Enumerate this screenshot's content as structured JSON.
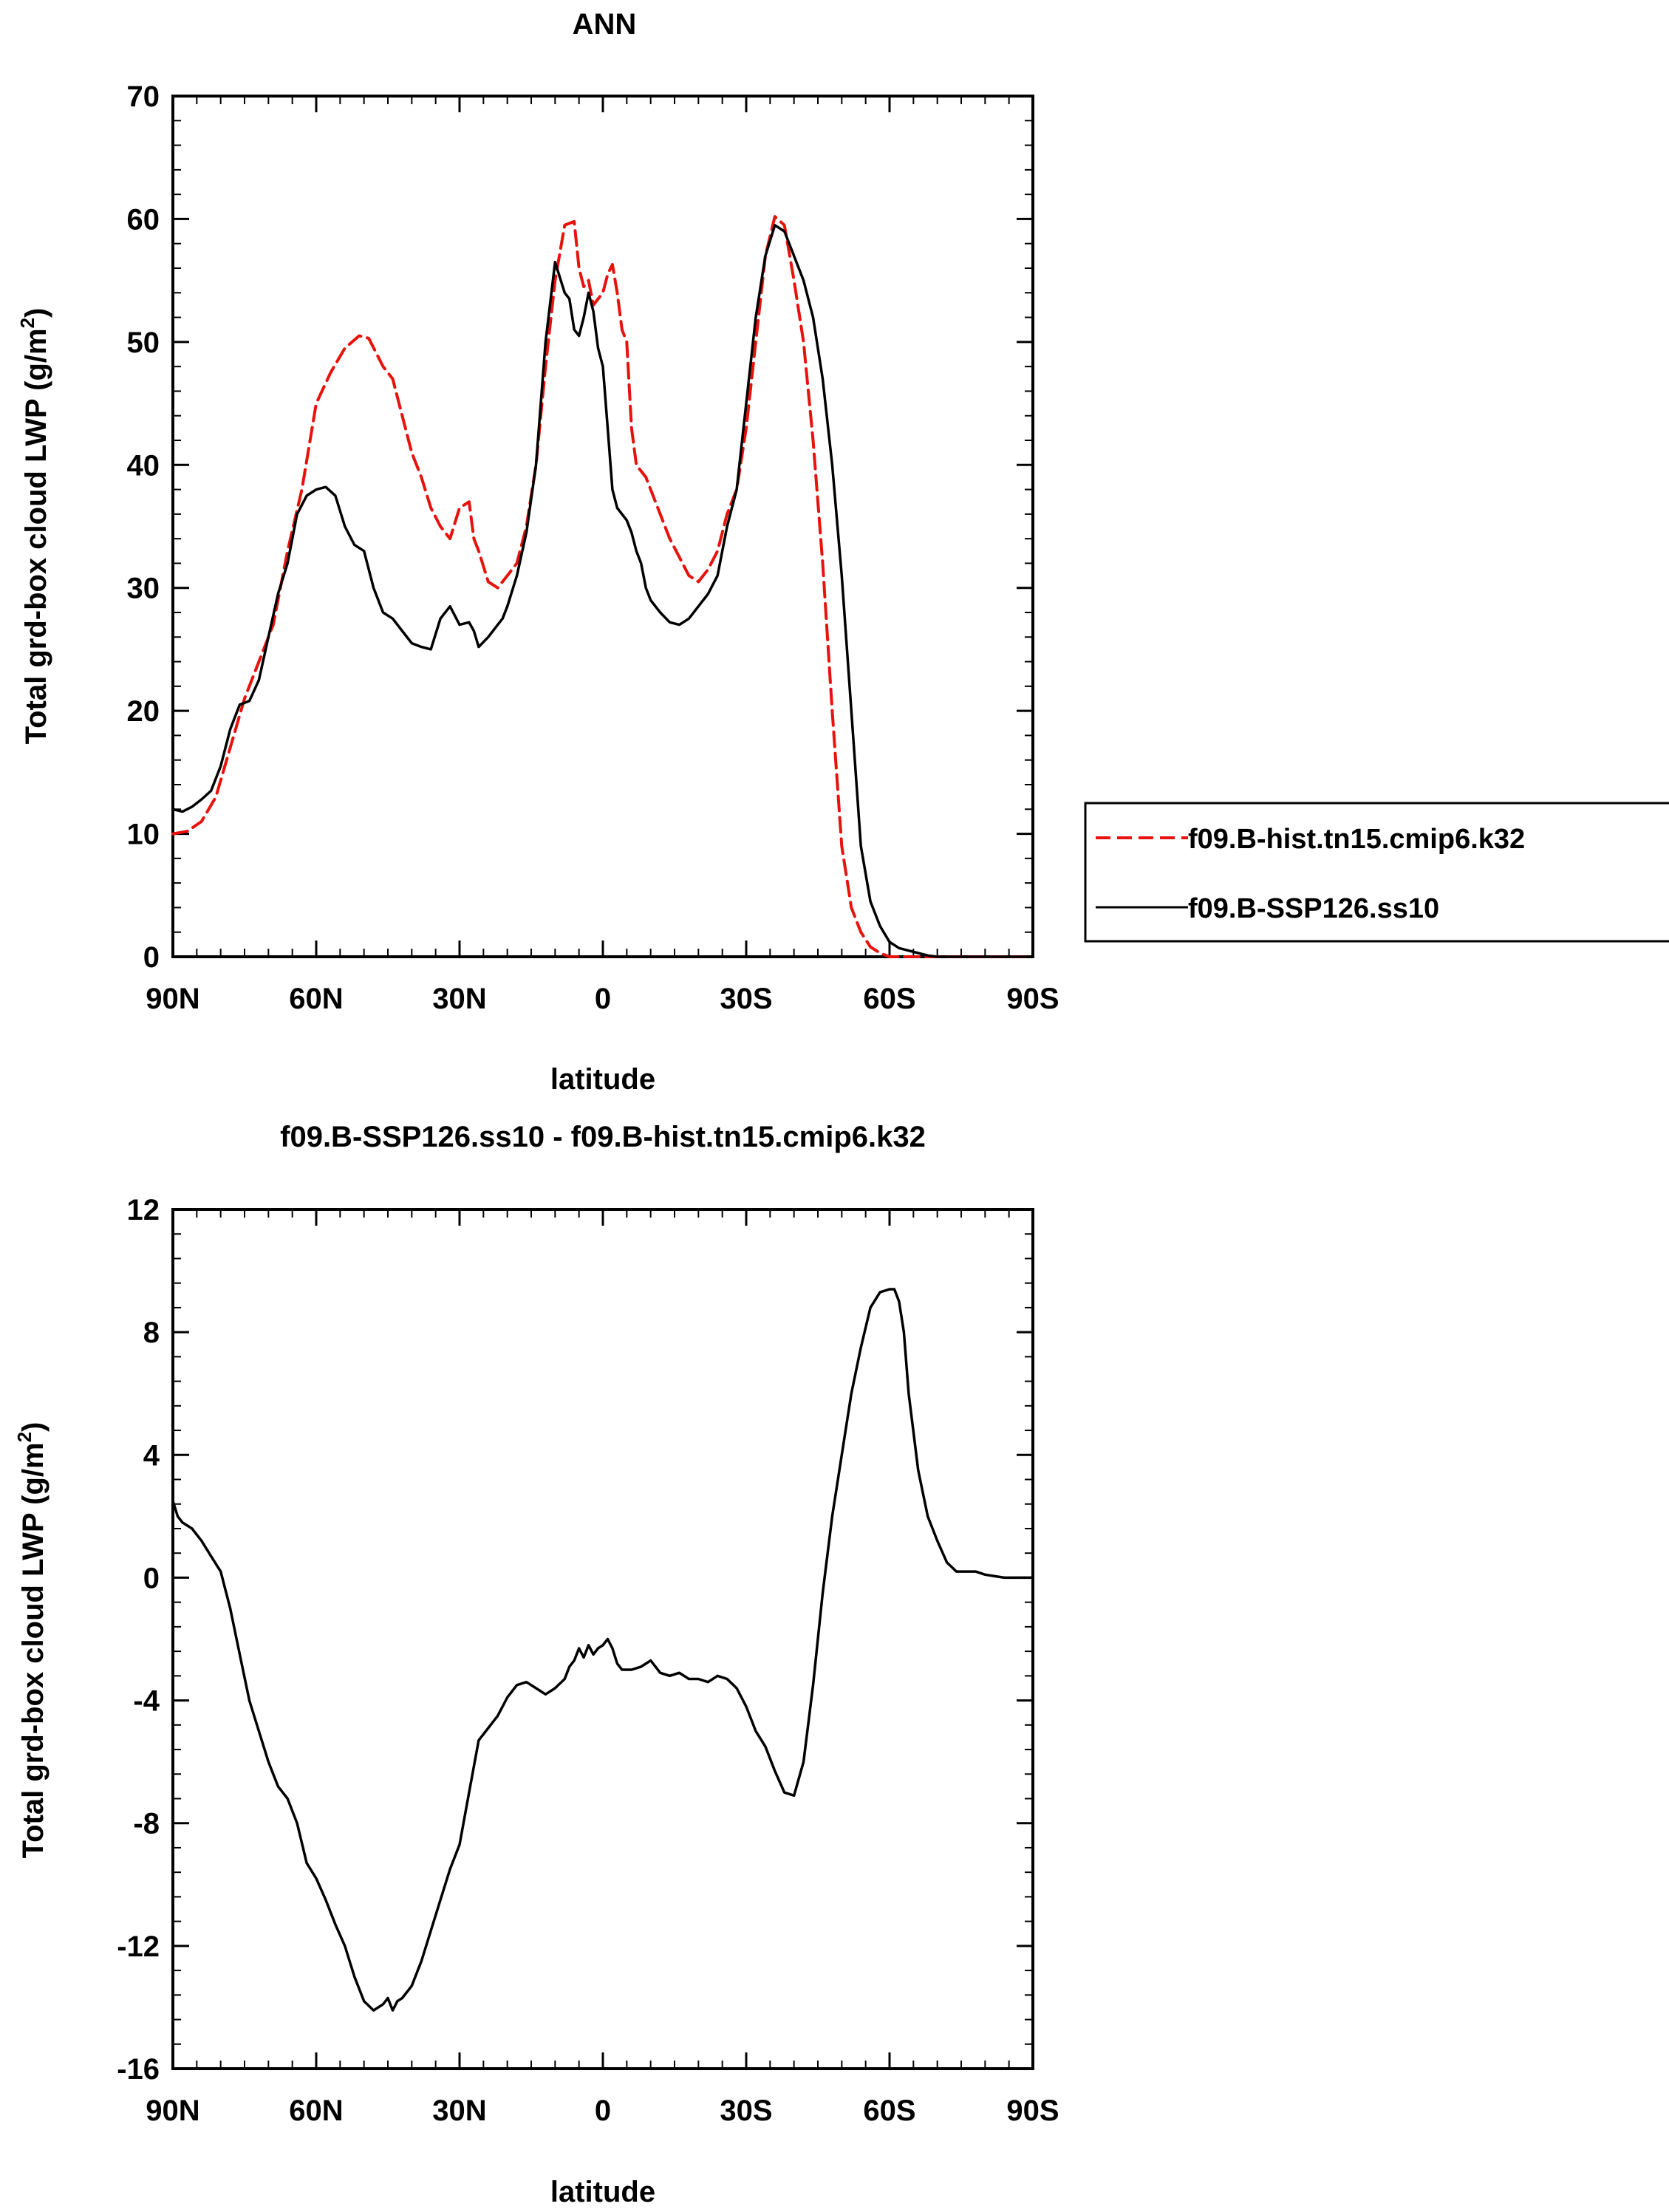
{
  "chart_data": [
    {
      "type": "line",
      "title": "ANN",
      "xlabel": "latitude",
      "ylabel": "Total grd-box cloud LWP",
      "ylabel_unit": "(g/m",
      "ylabel_unit_sup": "2",
      "ylabel_unit_close": ")",
      "xlim": [
        90,
        -90
      ],
      "ylim": [
        0,
        70
      ],
      "xticks": [
        90,
        60,
        30,
        0,
        -30,
        -60,
        -90
      ],
      "xtick_labels": [
        "90N",
        "60N",
        "30N",
        "0",
        "30S",
        "60S",
        "90S"
      ],
      "yticks": [
        0,
        10,
        20,
        30,
        40,
        50,
        60,
        70
      ],
      "ytick_labels": [
        "0",
        "10",
        "20",
        "30",
        "40",
        "50",
        "60",
        "70"
      ],
      "legend_position": "right, outside plot",
      "series": [
        {
          "name": "f09.B-hist.tn15.cmip6.k32",
          "color": "#e8120c",
          "style": "dashed",
          "x": [
            90,
            87,
            84,
            81,
            78,
            75,
            72,
            69,
            66,
            63,
            60,
            57,
            54,
            51,
            49,
            46,
            44,
            42,
            40,
            38,
            36,
            34,
            32,
            30,
            28,
            27,
            26,
            24,
            22,
            21,
            20,
            18,
            16,
            14,
            12,
            10,
            8,
            6,
            5,
            4,
            3,
            2,
            1,
            0,
            -1,
            -2,
            -3,
            -4,
            -5,
            -6,
            -7,
            -8,
            -9,
            -10,
            -12,
            -14,
            -16,
            -18,
            -20,
            -22,
            -24,
            -26,
            -28,
            -30,
            -32,
            -34,
            -36,
            -38,
            -40,
            -42,
            -44,
            -46,
            -48,
            -50,
            -52,
            -54,
            -56,
            -58,
            -60,
            -62,
            -64,
            -66,
            -68,
            -70,
            -72,
            -74,
            -76,
            -78,
            -80,
            -82,
            -84,
            -86,
            -88,
            -90
          ],
          "y": [
            10.0,
            10.2,
            11.0,
            13.0,
            17.0,
            21.0,
            24.0,
            27.0,
            33.0,
            38.0,
            45.0,
            47.5,
            49.5,
            50.5,
            50.3,
            48.0,
            47.0,
            44.0,
            41.0,
            39.0,
            36.5,
            35.0,
            34.0,
            36.5,
            37.0,
            34.0,
            33.0,
            30.5,
            30.0,
            30.5,
            31.0,
            32.0,
            35.0,
            40.0,
            48.0,
            55.0,
            59.5,
            59.8,
            56.0,
            54.5,
            55.0,
            53.0,
            53.5,
            54.0,
            55.5,
            56.3,
            54.0,
            51.0,
            50.0,
            43.0,
            40.0,
            39.5,
            39.0,
            38.0,
            36.0,
            34.0,
            32.5,
            31.0,
            30.5,
            31.5,
            33.0,
            36.0,
            38.0,
            43.0,
            50.0,
            57.0,
            60.2,
            59.5,
            55.0,
            50.0,
            42.0,
            32.0,
            20.0,
            9.0,
            4.0,
            2.0,
            0.8,
            0.3,
            0.0,
            0.0,
            0.0,
            0.0,
            0.0,
            0.0,
            0.0,
            0.0,
            0.0,
            0.0,
            0.0,
            0.0,
            0.0,
            0.0,
            0.0,
            0.0
          ]
        },
        {
          "name": "f09.B-SSP126.ss10",
          "color": "#000000",
          "style": "solid",
          "x": [
            90,
            88,
            86,
            84,
            82,
            80,
            78,
            76,
            74,
            72,
            70,
            68,
            66,
            64,
            62,
            60,
            58,
            56,
            54,
            52,
            50,
            48,
            46,
            44,
            42,
            40,
            38,
            36,
            34,
            32,
            30,
            28,
            27,
            26,
            24,
            22,
            21,
            20,
            18,
            16,
            14,
            12,
            10,
            8,
            7,
            6,
            5,
            4,
            3,
            2,
            1,
            0,
            -1,
            -2,
            -3,
            -4,
            -5,
            -6,
            -7,
            -8,
            -9,
            -10,
            -12,
            -14,
            -16,
            -18,
            -20,
            -22,
            -24,
            -26,
            -28,
            -30,
            -32,
            -34,
            -36,
            -38,
            -40,
            -42,
            -44,
            -46,
            -48,
            -50,
            -52,
            -54,
            -56,
            -58,
            -60,
            -62,
            -64,
            -66,
            -68,
            -70,
            -72,
            -74,
            -76,
            -78,
            -80,
            -82,
            -84,
            -86,
            -88,
            -90
          ],
          "y": [
            12.0,
            11.8,
            12.2,
            12.8,
            13.5,
            15.5,
            18.5,
            20.5,
            20.8,
            22.5,
            26.0,
            29.5,
            32.0,
            36.0,
            37.5,
            38.0,
            38.2,
            37.5,
            35.0,
            33.5,
            33.0,
            30.0,
            28.0,
            27.5,
            26.5,
            25.5,
            25.2,
            25.0,
            27.5,
            28.5,
            27.0,
            27.2,
            26.5,
            25.2,
            26.0,
            27.0,
            27.5,
            28.5,
            31.0,
            34.5,
            40.0,
            50.0,
            56.5,
            54.0,
            53.5,
            51.0,
            50.5,
            52.0,
            54.0,
            52.5,
            49.5,
            48.0,
            43.0,
            38.0,
            36.5,
            36.0,
            35.5,
            34.5,
            33.0,
            32.0,
            30.0,
            29.0,
            28.0,
            27.2,
            27.0,
            27.5,
            28.5,
            29.5,
            31.0,
            35.0,
            38.0,
            45.0,
            52.0,
            57.0,
            59.5,
            59.0,
            57.0,
            55.0,
            52.0,
            47.0,
            40.0,
            31.0,
            20.0,
            9.0,
            4.5,
            2.5,
            1.2,
            0.7,
            0.5,
            0.3,
            0.1,
            0.0,
            0.0,
            0.0,
            0.0,
            0.0,
            0.0,
            0.0,
            0.0,
            0.0,
            0.0,
            0.0
          ]
        }
      ]
    },
    {
      "type": "line",
      "title": "f09.B-SSP126.ss10 - f09.B-hist.tn15.cmip6.k32",
      "xlabel": "latitude",
      "ylabel": "Total grd-box cloud LWP",
      "ylabel_unit": "(g/m",
      "ylabel_unit_sup": "2",
      "ylabel_unit_close": ")",
      "xlim": [
        90,
        -90
      ],
      "ylim": [
        -16,
        12
      ],
      "xticks": [
        90,
        60,
        30,
        0,
        -30,
        -60,
        -90
      ],
      "xtick_labels": [
        "90N",
        "60N",
        "30N",
        "0",
        "30S",
        "60S",
        "90S"
      ],
      "yticks": [
        -16,
        -12,
        -8,
        -4,
        0,
        4,
        8,
        12
      ],
      "ytick_labels": [
        "-16",
        "-12",
        "-8",
        "-4",
        "0",
        "4",
        "8",
        "12"
      ],
      "series": [
        {
          "color": "#000000",
          "style": "solid",
          "x": [
            90,
            89,
            88,
            86,
            84,
            82,
            80,
            78,
            76,
            74,
            72,
            70,
            68,
            66,
            64,
            62,
            60,
            58,
            56,
            54,
            52,
            50,
            48,
            46,
            45,
            44,
            43,
            42,
            40,
            38,
            36,
            34,
            32,
            30,
            28,
            26,
            24,
            22,
            20,
            18,
            16,
            14,
            12,
            10,
            8,
            7,
            6,
            5,
            4,
            3,
            2,
            1,
            0,
            -1,
            -2,
            -3,
            -4,
            -6,
            -8,
            -10,
            -12,
            -14,
            -16,
            -18,
            -20,
            -22,
            -24,
            -26,
            -28,
            -30,
            -32,
            -34,
            -36,
            -38,
            -40,
            -42,
            -44,
            -46,
            -48,
            -50,
            -52,
            -54,
            -56,
            -58,
            -60,
            -61,
            -62,
            -63,
            -64,
            -66,
            -68,
            -70,
            -72,
            -74,
            -76,
            -78,
            -80,
            -82,
            -84,
            -86,
            -88,
            -90
          ],
          "y": [
            2.5,
            2.0,
            1.8,
            1.6,
            1.2,
            0.7,
            0.2,
            -1.0,
            -2.5,
            -4.0,
            -5.0,
            -6.0,
            -6.8,
            -7.2,
            -8.0,
            -9.3,
            -9.8,
            -10.5,
            -11.3,
            -12.0,
            -13.0,
            -13.8,
            -14.1,
            -13.9,
            -13.7,
            -14.1,
            -13.8,
            -13.7,
            -13.3,
            -12.5,
            -11.5,
            -10.5,
            -9.5,
            -8.7,
            -7.0,
            -5.3,
            -4.9,
            -4.5,
            -3.9,
            -3.5,
            -3.4,
            -3.6,
            -3.8,
            -3.6,
            -3.3,
            -2.9,
            -2.7,
            -2.3,
            -2.6,
            -2.2,
            -2.5,
            -2.3,
            -2.2,
            -2.0,
            -2.3,
            -2.8,
            -3.0,
            -3.0,
            -2.9,
            -2.7,
            -3.1,
            -3.2,
            -3.1,
            -3.3,
            -3.3,
            -3.4,
            -3.2,
            -3.3,
            -3.6,
            -4.2,
            -5.0,
            -5.5,
            -6.3,
            -7.0,
            -7.1,
            -6.0,
            -3.5,
            -0.5,
            2.0,
            4.0,
            6.0,
            7.5,
            8.8,
            9.3,
            9.4,
            9.4,
            9.0,
            8.0,
            6.0,
            3.5,
            2.0,
            1.2,
            0.5,
            0.2,
            0.2,
            0.2,
            0.1,
            0.05,
            0.0,
            0.0,
            0.0,
            0.0
          ]
        }
      ]
    }
  ]
}
